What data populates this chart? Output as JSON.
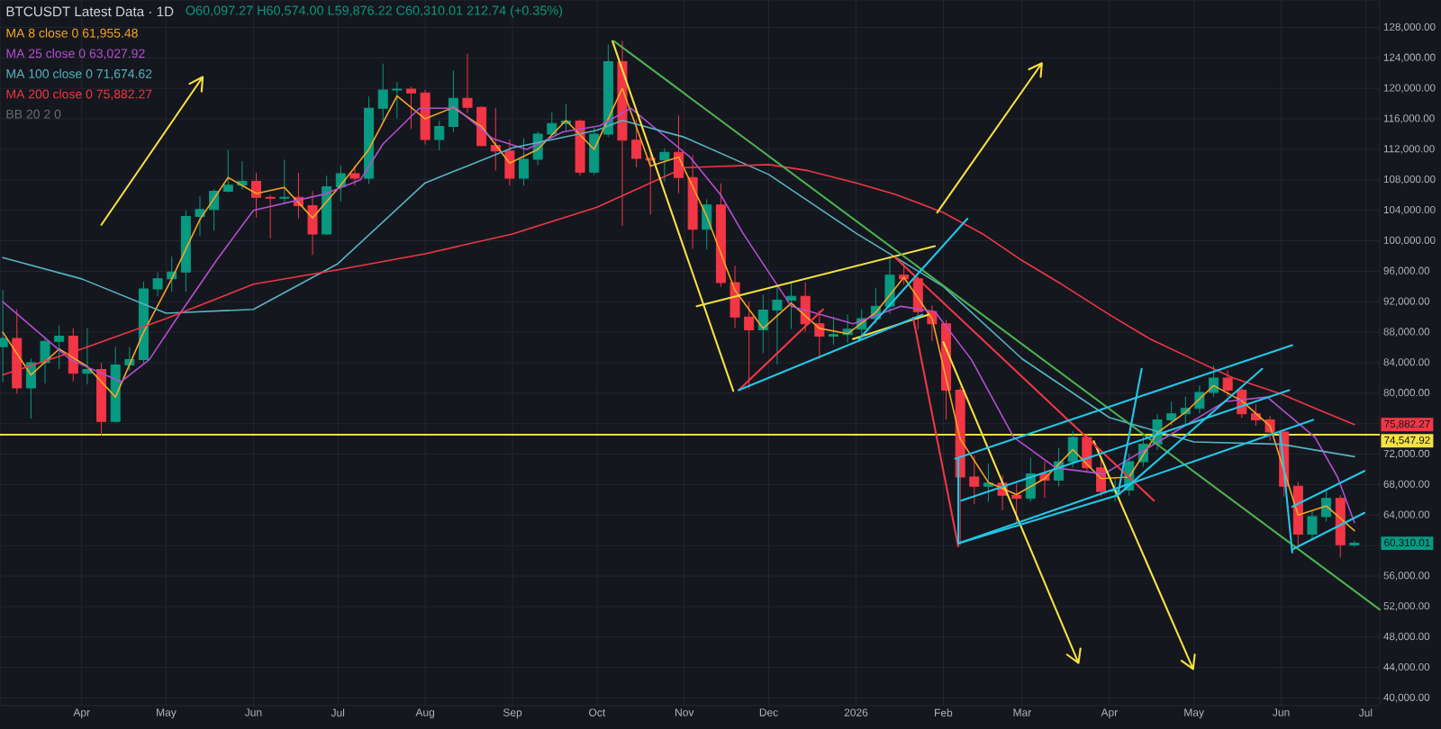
{
  "chart_data": {
    "type": "candlestick",
    "title": "BTCUSDT Latest Data · 1D",
    "subtitle": "O60,097.27 H60,574.00 L59,876.22 C60,310.01 212.74 (+0.35%)",
    "x": [
      "2025-03-04",
      "2025-03-09",
      "2025-03-14",
      "2025-03-19",
      "2025-03-24",
      "2025-03-29",
      "2025-04-03",
      "2025-04-08",
      "2025-04-13",
      "2025-04-18",
      "2025-04-23",
      "2025-04-28",
      "2025-05-03",
      "2025-05-08",
      "2025-05-13",
      "2025-05-18",
      "2025-05-23",
      "2025-05-28",
      "2025-06-02",
      "2025-06-07",
      "2025-06-12",
      "2025-06-17",
      "2025-06-22",
      "2025-06-27",
      "2025-07-02",
      "2025-07-07",
      "2025-07-12",
      "2025-07-17",
      "2025-07-22",
      "2025-07-27",
      "2025-08-01",
      "2025-08-06",
      "2025-08-11",
      "2025-08-16",
      "2025-08-21",
      "2025-08-26",
      "2025-08-31",
      "2025-09-05",
      "2025-09-10",
      "2025-09-15",
      "2025-09-20",
      "2025-09-25",
      "2025-09-30",
      "2025-10-05",
      "2025-10-10",
      "2025-10-15",
      "2025-10-20",
      "2025-10-25",
      "2025-10-30",
      "2025-11-04",
      "2025-11-09",
      "2025-11-14",
      "2025-11-19",
      "2025-11-24",
      "2025-11-29",
      "2025-12-04",
      "2025-12-09",
      "2025-12-14",
      "2025-12-19",
      "2025-12-24",
      "2025-12-29",
      "2026-01-03",
      "2026-01-08",
      "2026-01-13",
      "2026-01-18",
      "2026-01-23",
      "2026-01-28",
      "2026-02-02",
      "2026-02-07",
      "2026-02-12",
      "2026-02-17",
      "2026-02-22",
      "2026-02-27",
      "2026-03-04",
      "2026-03-09",
      "2026-03-14",
      "2026-03-19",
      "2026-03-24",
      "2026-03-29",
      "2026-04-03",
      "2026-04-08",
      "2026-04-13",
      "2026-04-18",
      "2026-04-23",
      "2026-04-28",
      "2026-05-03",
      "2026-05-08",
      "2026-05-13",
      "2026-05-18",
      "2026-05-23",
      "2026-05-28",
      "2026-06-02",
      "2026-06-07",
      "2026-06-12",
      "2026-06-17",
      "2026-06-22",
      "2026-06-27"
    ],
    "ohlc": [
      [
        86100,
        93500,
        81500,
        87200
      ],
      [
        87200,
        91000,
        80000,
        80700
      ],
      [
        80700,
        84500,
        76700,
        84000
      ],
      [
        84000,
        87400,
        81300,
        86800
      ],
      [
        86800,
        88800,
        83200,
        87500
      ],
      [
        87500,
        88500,
        81600,
        82600
      ],
      [
        82600,
        88500,
        81200,
        83100
      ],
      [
        83100,
        83900,
        74500,
        76300
      ],
      [
        76300,
        86000,
        76200,
        83700
      ],
      [
        83700,
        86000,
        83000,
        84400
      ],
      [
        84400,
        94600,
        84000,
        93700
      ],
      [
        93700,
        95800,
        92800,
        95000
      ],
      [
        95000,
        97900,
        93400,
        95900
      ],
      [
        95900,
        103900,
        93400,
        103200
      ],
      [
        103200,
        105800,
        100700,
        104100
      ],
      [
        104100,
        106700,
        101400,
        106500
      ],
      [
        106500,
        111900,
        106400,
        107300
      ],
      [
        107300,
        110400,
        106800,
        107800
      ],
      [
        107800,
        108900,
        103100,
        105700
      ],
      [
        105700,
        106000,
        100400,
        105600
      ],
      [
        105600,
        110600,
        105000,
        105700
      ],
      [
        105700,
        108900,
        103000,
        104600
      ],
      [
        104600,
        106500,
        98200,
        100900
      ],
      [
        100900,
        108500,
        100800,
        107100
      ],
      [
        107100,
        109800,
        105200,
        108800
      ],
      [
        108800,
        109800,
        107300,
        108200
      ],
      [
        108200,
        118900,
        107500,
        117400
      ],
      [
        117400,
        123200,
        115700,
        119800
      ],
      [
        119800,
        120800,
        116100,
        119900
      ],
      [
        119900,
        120200,
        114700,
        119400
      ],
      [
        119400,
        119800,
        112700,
        113300
      ],
      [
        113300,
        115700,
        111900,
        115000
      ],
      [
        115000,
        122300,
        114300,
        118700
      ],
      [
        118700,
        124500,
        116800,
        117500
      ],
      [
        117500,
        117600,
        112400,
        112500
      ],
      [
        112500,
        117400,
        109300,
        111800
      ],
      [
        111800,
        113300,
        107300,
        108200
      ],
      [
        108200,
        113400,
        107300,
        110700
      ],
      [
        110700,
        114300,
        110000,
        114000
      ],
      [
        114000,
        116800,
        113800,
        115400
      ],
      [
        115400,
        117900,
        114400,
        115700
      ],
      [
        115700,
        115900,
        108600,
        109000
      ],
      [
        109000,
        114800,
        108700,
        114000
      ],
      [
        114000,
        125700,
        113700,
        123500
      ],
      [
        123500,
        126200,
        102000,
        113200
      ],
      [
        113200,
        115900,
        109700,
        110800
      ],
      [
        110800,
        111800,
        103500,
        110600
      ],
      [
        110600,
        112100,
        107800,
        111600
      ],
      [
        111600,
        116400,
        106300,
        108300
      ],
      [
        108300,
        111200,
        99000,
        101500
      ],
      [
        101500,
        105400,
        98900,
        104700
      ],
      [
        104700,
        107500,
        94000,
        94500
      ],
      [
        94500,
        96700,
        88600,
        90000
      ],
      [
        90000,
        92000,
        80600,
        88300
      ],
      [
        88300,
        92900,
        85300,
        90900
      ],
      [
        90900,
        94000,
        83800,
        92200
      ],
      [
        92200,
        94600,
        88500,
        92700
      ],
      [
        92700,
        94500,
        88100,
        89100
      ],
      [
        89100,
        90800,
        84500,
        87500
      ],
      [
        87500,
        90000,
        86400,
        87700
      ],
      [
        87700,
        90300,
        86700,
        88400
      ],
      [
        88400,
        91000,
        87200,
        89800
      ],
      [
        89800,
        93800,
        89200,
        91400
      ],
      [
        91400,
        97900,
        90500,
        95500
      ],
      [
        95500,
        97200,
        94300,
        95000
      ],
      [
        95000,
        95300,
        88400,
        90700
      ],
      [
        90700,
        91500,
        86900,
        89100
      ],
      [
        89100,
        89600,
        76600,
        80400
      ],
      [
        80400,
        80800,
        60100,
        69000
      ],
      [
        69000,
        71800,
        65500,
        67800
      ],
      [
        67800,
        70700,
        65800,
        68200
      ],
      [
        68200,
        69200,
        64700,
        66600
      ],
      [
        66600,
        68100,
        63100,
        66200
      ],
      [
        66200,
        71500,
        65800,
        69400
      ],
      [
        69400,
        71000,
        66300,
        68600
      ],
      [
        68600,
        72800,
        67800,
        71000
      ],
      [
        71000,
        75000,
        70300,
        74200
      ],
      [
        74200,
        74600,
        69600,
        70200
      ],
      [
        70200,
        71400,
        66500,
        67100
      ],
      [
        67100,
        68900,
        65800,
        67300
      ],
      [
        67300,
        72000,
        66600,
        71000
      ],
      [
        71000,
        74300,
        70400,
        73300
      ],
      [
        73300,
        77200,
        72600,
        76500
      ],
      [
        76500,
        78900,
        75800,
        77300
      ],
      [
        77300,
        79500,
        76000,
        78000
      ],
      [
        78000,
        81000,
        77400,
        80100
      ],
      [
        80100,
        83600,
        79600,
        82000
      ],
      [
        82000,
        83000,
        79600,
        80400
      ],
      [
        80400,
        80900,
        76800,
        77300
      ],
      [
        77300,
        78500,
        75800,
        76500
      ],
      [
        76500,
        77000,
        73800,
        74900
      ],
      [
        74900,
        75200,
        66500,
        67800
      ],
      [
        67800,
        68300,
        59800,
        61500
      ],
      [
        61500,
        64500,
        60800,
        63800
      ],
      [
        63800,
        67200,
        63200,
        66200
      ],
      [
        66200,
        66600,
        58500,
        60100
      ],
      [
        60097.27,
        60574.0,
        59876.22,
        60310.01
      ]
    ],
    "colors": [
      "#089981",
      "#f23645",
      "#089981",
      "#089981",
      "#089981",
      "#f23645",
      "#089981",
      "#f23645",
      "#089981",
      "#089981",
      "#089981",
      "#089981",
      "#089981",
      "#089981",
      "#089981",
      "#089981",
      "#089981",
      "#089981",
      "#f23645",
      "#f23645",
      "#089981",
      "#f23645",
      "#f23645",
      "#089981",
      "#089981",
      "#f23645",
      "#089981",
      "#089981",
      "#089981",
      "#f23645",
      "#f23645",
      "#089981",
      "#089981",
      "#f23645",
      "#f23645",
      "#f23645",
      "#f23645",
      "#089981",
      "#089981",
      "#089981",
      "#089981",
      "#f23645",
      "#089981",
      "#089981",
      "#f23645",
      "#f23645",
      "#f23645",
      "#089981",
      "#f23645",
      "#f23645",
      "#089981",
      "#f23645",
      "#f23645",
      "#f23645",
      "#089981",
      "#089981",
      "#089981",
      "#f23645",
      "#f23645",
      "#089981",
      "#089981",
      "#089981",
      "#089981",
      "#089981",
      "#f23645",
      "#f23645",
      "#f23645",
      "#f23645",
      "#f23645",
      "#f23645",
      "#089981",
      "#f23645",
      "#f23645",
      "#089981",
      "#f23645",
      "#089981",
      "#089981",
      "#f23645",
      "#f23645",
      "#089981",
      "#089981",
      "#089981",
      "#089981",
      "#089981",
      "#089981",
      "#089981",
      "#089981",
      "#f23645",
      "#f23645",
      "#f23645",
      "#f23645",
      "#f23645",
      "#f23645",
      "#089981",
      "#089981",
      "#f23645",
      "#089981"
    ],
    "series": [
      {
        "type": "line",
        "name": "MA 8 close 0 61,955.48",
        "color": "#f5a623",
        "x": [
          "2025-03-04",
          "2025-03-14",
          "2025-03-24",
          "2025-04-03",
          "2025-04-13",
          "2025-04-23",
          "2025-05-03",
          "2025-05-13",
          "2025-05-23",
          "2025-06-02",
          "2025-06-12",
          "2025-06-22",
          "2025-07-02",
          "2025-07-12",
          "2025-07-22",
          "2025-08-01",
          "2025-08-11",
          "2025-08-21",
          "2025-08-31",
          "2025-09-10",
          "2025-09-20",
          "2025-09-30",
          "2025-10-10",
          "2025-10-20",
          "2025-10-30",
          "2025-11-09",
          "2025-11-19",
          "2025-11-29",
          "2025-12-09",
          "2025-12-19",
          "2025-12-29",
          "2026-01-08",
          "2026-01-18",
          "2026-01-28",
          "2026-02-07",
          "2026-02-17",
          "2026-02-27",
          "2026-03-09",
          "2026-03-19",
          "2026-03-29",
          "2026-04-08",
          "2026-04-18",
          "2026-04-28",
          "2026-05-08",
          "2026-05-18",
          "2026-05-28",
          "2026-06-07",
          "2026-06-17",
          "2026-06-27"
        ],
        "values": [
          88000,
          82400,
          85800,
          83500,
          79500,
          88000,
          95000,
          102800,
          108300,
          106200,
          107000,
          103000,
          107300,
          112000,
          119000,
          116000,
          117500,
          115000,
          110200,
          112000,
          115800,
          112000,
          120000,
          109800,
          111000,
          103200,
          93500,
          88500,
          91800,
          88500,
          87800,
          90600,
          95200,
          89800,
          74000,
          68300,
          66700,
          68800,
          72600,
          68800,
          69000,
          74800,
          77500,
          81000,
          79000,
          75700,
          64000,
          65200,
          61955.48
        ]
      },
      {
        "type": "line",
        "name": "MA 25 close 0 63,027.92",
        "color": "#b44fd0",
        "x": [
          "2025-03-04",
          "2025-03-28",
          "2025-04-15",
          "2025-04-25",
          "2025-05-06",
          "2025-05-19",
          "2025-06-01",
          "2025-06-14",
          "2025-06-26",
          "2025-07-09",
          "2025-07-17",
          "2025-07-30",
          "2025-08-12",
          "2025-08-25",
          "2025-09-06",
          "2025-09-19",
          "2025-10-02",
          "2025-10-13",
          "2025-11-03",
          "2025-11-14",
          "2025-11-22",
          "2025-12-09",
          "2025-12-31",
          "2026-01-17",
          "2026-01-29",
          "2026-02-11",
          "2026-02-26",
          "2026-03-13",
          "2026-03-30",
          "2026-04-21",
          "2026-05-12",
          "2026-05-27",
          "2026-06-13",
          "2026-06-21",
          "2026-06-27"
        ],
        "values": [
          92000,
          84400,
          81500,
          84400,
          90500,
          97500,
          104000,
          105100,
          106100,
          108000,
          112700,
          117400,
          117400,
          113400,
          112000,
          114300,
          115100,
          117400,
          111000,
          106000,
          100900,
          91400,
          89100,
          91400,
          90700,
          84400,
          74200,
          70200,
          69400,
          74200,
          78900,
          79500,
          74200,
          69000,
          63027.92
        ]
      },
      {
        "type": "line",
        "name": "MA 100 close 0 71,674.62",
        "color": "#56b4c4",
        "x": [
          "2025-03-04",
          "2025-04-01",
          "2025-05-01",
          "2025-06-01",
          "2025-07-01",
          "2025-08-01",
          "2025-09-01",
          "2025-10-01",
          "2025-10-10",
          "2025-11-01",
          "2025-12-01",
          "2026-01-01",
          "2026-02-01",
          "2026-03-01",
          "2026-04-01",
          "2026-05-01",
          "2026-06-01",
          "2026-06-27"
        ],
        "values": [
          97800,
          95000,
          90500,
          91000,
          97000,
          107600,
          112200,
          114500,
          115800,
          113600,
          108700,
          101000,
          94000,
          84500,
          76800,
          73600,
          73300,
          71674.62
        ]
      },
      {
        "type": "line",
        "name": "MA 200 close 0 75,882.27",
        "color": "#f23645",
        "x": [
          "2025-03-04",
          "2025-04-01",
          "2025-05-01",
          "2025-06-01",
          "2025-07-01",
          "2025-08-01",
          "2025-09-01",
          "2025-10-01",
          "2025-11-01",
          "2025-12-01",
          "2025-12-15",
          "2026-01-01",
          "2026-01-15",
          "2026-02-01",
          "2026-02-15",
          "2026-03-01",
          "2026-03-15",
          "2026-04-01",
          "2026-04-15",
          "2026-05-01",
          "2026-05-15",
          "2026-06-01",
          "2026-06-15",
          "2026-06-27"
        ],
        "values": [
          82400,
          85800,
          89800,
          94300,
          96200,
          98300,
          100900,
          104400,
          109600,
          110000,
          109200,
          107600,
          106100,
          103700,
          100900,
          97400,
          94300,
          90300,
          87200,
          84400,
          82000,
          79900,
          77700,
          75882.27
        ]
      },
      {
        "type": "line",
        "color": "#f5e142",
        "x": [
          "2025-04-08",
          "2025-05-14",
          "2025-05-09T07:00",
          "2025-05-14",
          "2025-05-13T14:00"
        ],
        "values": [
          102100,
          121500,
          120600,
          121500,
          119600
        ]
      },
      {
        "type": "line",
        "color": "#f5e142",
        "x": [
          "2025-10-06T12:00",
          "2025-11-18T10:00"
        ],
        "values": [
          126200,
          80300
        ]
      },
      {
        "type": "line",
        "color": "#f5e142",
        "x": [
          "2025-11-05T10:00",
          "2026-01-29"
        ],
        "values": [
          91400,
          99300
        ]
      },
      {
        "type": "line",
        "color": "#f5e142",
        "x": [
          "2025-12-30T22:00",
          "2026-01-26T15:00"
        ],
        "values": [
          87100,
          90300
        ]
      },
      {
        "type": "line",
        "color": "#f5e142",
        "x": [
          "2026-01-29T20:00",
          "2026-03-08",
          "2026-03-03T10:00",
          "2026-03-08",
          "2026-03-07T14:00"
        ],
        "values": [
          103700,
          123300,
          122500,
          123300,
          121500
        ]
      },
      {
        "type": "line",
        "color": "#f5e142",
        "x": [
          "2026-02-01",
          "2026-03-21",
          "2026-03-21T17:00",
          "2026-03-21",
          "2026-03-16T22:00"
        ],
        "values": [
          86700,
          44600,
          46500,
          44600,
          45700
        ]
      },
      {
        "type": "line",
        "color": "#f5e142",
        "x": [
          "2026-03-26T10:00",
          "2026-04-30T17:00",
          "2026-05-01T07:00",
          "2026-04-30T17:00",
          "2026-04-26T14:00"
        ],
        "values": [
          73700,
          43800,
          45700,
          43800,
          44900
        ]
      },
      {
        "type": "line",
        "color": "#4caf50",
        "x": [
          "2025-10-07",
          "2026-07-06"
        ],
        "values": [
          126200,
          51600
        ]
      },
      {
        "type": "line",
        "color": "#f23645",
        "x": [
          "2025-11-20T08:00",
          "2025-12-20T07:00"
        ],
        "values": [
          80400,
          91000
        ]
      },
      {
        "type": "line",
        "color": "#f23645",
        "x": [
          "2026-01-14T22:00",
          "2026-04-16T19:00"
        ],
        "values": [
          97800,
          65900
        ]
      },
      {
        "type": "line",
        "color": "#f23645",
        "x": [
          "2026-01-21T07:00",
          "2026-02-06T07:00"
        ],
        "values": [
          89900,
          59900
        ]
      },
      {
        "type": "line",
        "color": "#22c7e8",
        "x": [
          "2025-11-20T08:00",
          "2026-01-24T13:00"
        ],
        "values": [
          80400,
          90300
        ]
      },
      {
        "type": "line",
        "color": "#22c7e8",
        "x": [
          "2026-01-02T02:00",
          "2026-02-09T13:00"
        ],
        "values": [
          87100,
          102900
        ]
      },
      {
        "type": "line",
        "color": "#22c7e8",
        "x": [
          "2026-02-05T06:00",
          "2026-06-04T22:00"
        ],
        "values": [
          71400,
          86300
        ]
      },
      {
        "type": "line",
        "color": "#22c7e8",
        "x": [
          "2026-02-07T09:00",
          "2026-06-03T20:00"
        ],
        "values": [
          65900,
          80400
        ]
      },
      {
        "type": "line",
        "color": "#22c7e8",
        "x": [
          "2026-02-06T08:00",
          "2026-02-06T08:00",
          "2026-06-12T09:00"
        ],
        "values": [
          71400,
          60300,
          76500
        ]
      },
      {
        "type": "line",
        "color": "#22c7e8",
        "x": [
          "2026-02-06T08:00",
          "2026-04-03T23:00",
          "2026-05-25T06:00"
        ],
        "values": [
          60300,
          66600,
          83200
        ]
      },
      {
        "type": "line",
        "color": "#22c7e8",
        "x": [
          "2026-04-03T23:00",
          "2026-04-12T11:00"
        ],
        "values": [
          66600,
          83200
        ]
      },
      {
        "type": "line",
        "color": "#22c7e8",
        "x": [
          "2026-05-31T15:00",
          "2026-06-04T22:00"
        ],
        "values": [
          74900,
          59100
        ]
      },
      {
        "type": "line",
        "color": "#22c7e8",
        "x": [
          "2026-06-04T22:00",
          "2026-06-30T14:00"
        ],
        "values": [
          59500,
          64300
        ]
      },
      {
        "type": "line",
        "color": "#22c7e8",
        "x": [
          "2026-06-04T22:00",
          "2026-06-30T14:00"
        ],
        "values": [
          65100,
          69800
        ]
      }
    ],
    "xlim": [
      "2025-03-03",
      "2026-07-06"
    ],
    "ylim": [
      39000,
      131600
    ],
    "xticks": [
      {
        "value": "2025-04-01",
        "label": "Apr"
      },
      {
        "value": "2025-05-01",
        "label": "May"
      },
      {
        "value": "2025-06-01",
        "label": "Jun"
      },
      {
        "value": "2025-07-01",
        "label": "Jul"
      },
      {
        "value": "2025-08-01",
        "label": "Aug"
      },
      {
        "value": "2025-09-01",
        "label": "Sep"
      },
      {
        "value": "2025-10-01",
        "label": "Oct"
      },
      {
        "value": "2025-11-01",
        "label": "Nov"
      },
      {
        "value": "2025-12-01",
        "label": "Dec"
      },
      {
        "value": "2026-01-01",
        "label": "2026"
      },
      {
        "value": "2026-02-01",
        "label": "Feb"
      },
      {
        "value": "2026-03-01",
        "label": "Mar"
      },
      {
        "value": "2026-04-01",
        "label": "Apr"
      },
      {
        "value": "2026-05-01",
        "label": "May"
      },
      {
        "value": "2026-06-01",
        "label": "Jun"
      },
      {
        "value": "2026-07-01",
        "label": "Jul"
      }
    ],
    "yticks": [
      {
        "value": 40000,
        "label": "40,000.00"
      },
      {
        "value": 44000,
        "label": "44,000.00"
      },
      {
        "value": 48000,
        "label": "48,000.00"
      },
      {
        "value": 52000,
        "label": "52,000.00"
      },
      {
        "value": 56000,
        "label": "56,000.00"
      },
      {
        "value": 60000,
        "label": null
      },
      {
        "value": 64000,
        "label": "64,000.00"
      },
      {
        "value": 68000,
        "label": "68,000.00"
      },
      {
        "value": 72000,
        "label": "72,000.00"
      },
      {
        "value": 76000,
        "label": null
      },
      {
        "value": 80000,
        "label": "80,000.00"
      },
      {
        "value": 84000,
        "label": "84,000.00"
      },
      {
        "value": 88000,
        "label": "88,000.00"
      },
      {
        "value": 92000,
        "label": "92,000.00"
      },
      {
        "value": 96000,
        "label": "96,000.00"
      },
      {
        "value": 100000,
        "label": "100,000.00"
      },
      {
        "value": 104000,
        "label": "104,000.00"
      },
      {
        "value": 108000,
        "label": "108,000.00"
      },
      {
        "value": 112000,
        "label": "112,000.00"
      },
      {
        "value": 116000,
        "label": "116,000.00"
      },
      {
        "value": 120000,
        "label": "120,000.00"
      },
      {
        "value": 124000,
        "label": "124,000.00"
      },
      {
        "value": 128000,
        "label": "128,000.00"
      }
    ],
    "grid": true,
    "legend": "top left",
    "ref_lines": [
      {
        "axis": "y",
        "value": 74547.92,
        "label": "74,547.92",
        "color": "#f5e142"
      }
    ],
    "annotations": [
      "BB 20 2 0",
      {
        "text": "75,882.27",
        "x": "2026-06-27",
        "y": 75882.27
      },
      {
        "text": "60,310.01",
        "x": "2026-06-27",
        "y": 60310.01
      }
    ]
  }
}
